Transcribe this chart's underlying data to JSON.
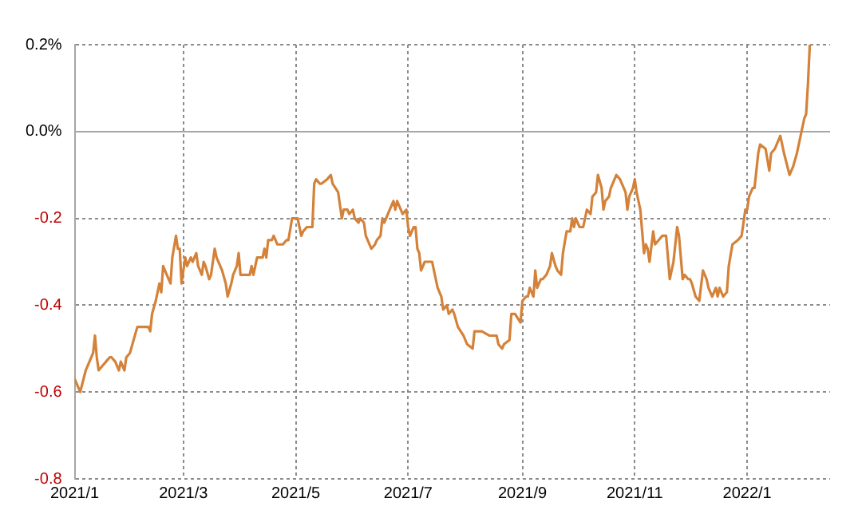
{
  "chart_data": {
    "type": "line",
    "grid": true,
    "legend": false,
    "marker": "none",
    "line_style": "solid",
    "xlim": [
      "2021-01-01",
      "2022-02-15"
    ],
    "xticks": [
      {
        "value": "2021-01-01",
        "label": "2021/1"
      },
      {
        "value": "2021-03-01",
        "label": "2021/3"
      },
      {
        "value": "2021-05-01",
        "label": "2021/5"
      },
      {
        "value": "2021-07-01",
        "label": "2021/7"
      },
      {
        "value": "2021-09-01",
        "label": "2021/9"
      },
      {
        "value": "2021-11-01",
        "label": "2021/11"
      },
      {
        "value": "2022-01-01",
        "label": "2022/1"
      }
    ],
    "ylim": [
      -0.8,
      0.2
    ],
    "yticks": [
      {
        "value": 0.2,
        "label": "0.2%"
      },
      {
        "value": 0,
        "label": "0.0%"
      },
      -0.2,
      -0.4,
      -0.6,
      -0.8
    ],
    "series": [
      {
        "color": "#d4823a",
        "x": [
          "2021-01-01",
          "2021-01-04",
          "2021-01-07",
          "2021-01-08",
          "2021-01-10",
          "2021-01-11",
          "2021-01-12",
          "2021-01-13",
          "2021-01-14",
          "2021-01-16",
          "2021-01-18",
          "2021-01-20",
          "2021-01-21",
          "2021-01-23",
          "2021-01-25",
          "2021-01-26",
          "2021-01-28",
          "2021-01-29",
          "2021-01-31",
          "2021-02-02",
          "2021-02-04",
          "2021-02-07",
          "2021-02-10",
          "2021-02-11",
          "2021-02-12",
          "2021-02-14",
          "2021-02-16",
          "2021-02-17",
          "2021-02-18",
          "2021-02-20",
          "2021-02-22",
          "2021-02-23",
          "2021-02-25",
          "2021-02-26",
          "2021-02-27",
          "2021-02-28",
          "2021-03-02",
          "2021-03-03",
          "2021-03-05",
          "2021-03-06",
          "2021-03-08",
          "2021-03-09",
          "2021-03-11",
          "2021-03-12",
          "2021-03-13",
          "2021-03-15",
          "2021-03-16",
          "2021-03-18",
          "2021-03-19",
          "2021-03-21",
          "2021-03-22",
          "2021-03-24",
          "2021-03-25",
          "2021-03-27",
          "2021-03-28",
          "2021-03-30",
          "2021-03-31",
          "2021-04-01",
          "2021-04-04",
          "2021-04-06",
          "2021-04-07",
          "2021-04-08",
          "2021-04-10",
          "2021-04-11",
          "2021-04-13",
          "2021-04-14",
          "2021-04-15",
          "2021-04-16",
          "2021-04-18",
          "2021-04-19",
          "2021-04-20",
          "2021-04-21",
          "2021-04-24",
          "2021-04-26",
          "2021-04-27",
          "2021-04-29",
          "2021-05-01",
          "2021-05-02",
          "2021-05-04",
          "2021-05-05",
          "2021-05-07",
          "2021-05-08",
          "2021-05-10",
          "2021-05-11",
          "2021-05-12",
          "2021-05-14",
          "2021-05-15",
          "2021-05-18",
          "2021-05-20",
          "2021-05-21",
          "2021-05-24",
          "2021-05-26",
          "2021-05-27",
          "2021-05-29",
          "2021-05-30",
          "2021-06-01",
          "2021-06-02",
          "2021-06-04",
          "2021-06-05",
          "2021-06-07",
          "2021-06-08",
          "2021-06-10",
          "2021-06-11",
          "2021-06-13",
          "2021-06-14",
          "2021-06-16",
          "2021-06-17",
          "2021-06-18",
          "2021-06-20",
          "2021-06-21",
          "2021-06-23",
          "2021-06-24",
          "2021-06-25",
          "2021-06-27",
          "2021-06-28",
          "2021-06-30",
          "2021-07-01",
          "2021-07-02",
          "2021-07-04",
          "2021-07-05",
          "2021-07-06",
          "2021-07-07",
          "2021-07-08",
          "2021-07-10",
          "2021-07-11",
          "2021-07-14",
          "2021-07-16",
          "2021-07-17",
          "2021-07-19",
          "2021-07-20",
          "2021-07-22",
          "2021-07-23",
          "2021-07-25",
          "2021-07-26",
          "2021-07-28",
          "2021-07-31",
          "2021-08-02",
          "2021-08-05",
          "2021-08-06",
          "2021-08-10",
          "2021-08-14",
          "2021-08-18",
          "2021-08-19",
          "2021-08-21",
          "2021-08-22",
          "2021-08-25",
          "2021-08-26",
          "2021-08-28",
          "2021-08-31",
          "2021-09-01",
          "2021-09-03",
          "2021-09-04",
          "2021-09-05",
          "2021-09-07",
          "2021-09-08",
          "2021-09-09",
          "2021-09-11",
          "2021-09-12",
          "2021-09-14",
          "2021-09-16",
          "2021-09-17",
          "2021-09-19",
          "2021-09-20",
          "2021-09-22",
          "2021-09-23",
          "2021-09-25",
          "2021-09-27",
          "2021-09-28",
          "2021-09-29",
          "2021-09-30",
          "2021-10-02",
          "2021-10-04",
          "2021-10-06",
          "2021-10-08",
          "2021-10-09",
          "2021-10-11",
          "2021-10-12",
          "2021-10-14",
          "2021-10-15",
          "2021-10-16",
          "2021-10-18",
          "2021-10-19",
          "2021-10-21",
          "2021-10-22",
          "2021-10-24",
          "2021-10-25",
          "2021-10-27",
          "2021-10-28",
          "2021-10-29",
          "2021-10-31",
          "2021-11-01",
          "2021-11-02",
          "2021-11-04",
          "2021-11-05",
          "2021-11-06",
          "2021-11-07",
          "2021-11-08",
          "2021-11-09",
          "2021-11-11",
          "2021-11-12",
          "2021-11-14",
          "2021-11-16",
          "2021-11-18",
          "2021-11-20",
          "2021-11-22",
          "2021-11-24",
          "2021-11-25",
          "2021-11-27",
          "2021-11-28",
          "2021-11-30",
          "2021-12-01",
          "2021-12-02",
          "2021-12-04",
          "2021-12-06",
          "2021-12-08",
          "2021-12-10",
          "2021-12-11",
          "2021-12-13",
          "2021-12-15",
          "2021-12-16",
          "2021-12-17",
          "2021-12-19",
          "2021-12-21",
          "2021-12-22",
          "2021-12-24",
          "2021-12-27",
          "2021-12-29",
          "2021-12-31",
          "2022-01-01",
          "2022-01-02",
          "2022-01-04",
          "2022-01-05",
          "2022-01-07",
          "2022-01-08",
          "2022-01-11",
          "2022-01-13",
          "2022-01-14",
          "2022-01-16",
          "2022-01-18",
          "2022-01-19",
          "2022-01-21",
          "2022-01-24",
          "2022-01-26",
          "2022-01-28",
          "2022-01-30",
          "2022-02-01",
          "2022-02-02",
          "2022-02-03",
          "2022-02-04"
        ],
        "values": [
          -0.57,
          -0.6,
          -0.55,
          -0.54,
          -0.52,
          -0.51,
          -0.47,
          -0.52,
          -0.55,
          -0.54,
          -0.53,
          -0.52,
          -0.52,
          -0.53,
          -0.55,
          -0.53,
          -0.55,
          -0.52,
          -0.51,
          -0.48,
          -0.45,
          -0.45,
          -0.45,
          -0.46,
          -0.42,
          -0.39,
          -0.35,
          -0.37,
          -0.31,
          -0.33,
          -0.35,
          -0.29,
          -0.24,
          -0.27,
          -0.27,
          -0.35,
          -0.29,
          -0.31,
          -0.29,
          -0.3,
          -0.28,
          -0.31,
          -0.33,
          -0.3,
          -0.31,
          -0.34,
          -0.33,
          -0.27,
          -0.29,
          -0.31,
          -0.32,
          -0.35,
          -0.38,
          -0.35,
          -0.33,
          -0.31,
          -0.28,
          -0.33,
          -0.33,
          -0.33,
          -0.31,
          -0.33,
          -0.29,
          -0.29,
          -0.29,
          -0.27,
          -0.29,
          -0.25,
          -0.25,
          -0.24,
          -0.25,
          -0.26,
          -0.26,
          -0.25,
          -0.25,
          -0.2,
          -0.2,
          -0.2,
          -0.24,
          -0.23,
          -0.22,
          -0.22,
          -0.22,
          -0.12,
          -0.11,
          -0.12,
          -0.12,
          -0.11,
          -0.1,
          -0.12,
          -0.14,
          -0.2,
          -0.18,
          -0.18,
          -0.19,
          -0.18,
          -0.2,
          -0.21,
          -0.2,
          -0.21,
          -0.24,
          -0.26,
          -0.27,
          -0.26,
          -0.25,
          -0.24,
          -0.2,
          -0.21,
          -0.19,
          -0.18,
          -0.16,
          -0.18,
          -0.16,
          -0.18,
          -0.19,
          -0.18,
          -0.22,
          -0.24,
          -0.22,
          -0.22,
          -0.27,
          -0.28,
          -0.32,
          -0.3,
          -0.3,
          -0.3,
          -0.34,
          -0.36,
          -0.38,
          -0.41,
          -0.4,
          -0.42,
          -0.41,
          -0.42,
          -0.45,
          -0.47,
          -0.49,
          -0.5,
          -0.46,
          -0.46,
          -0.47,
          -0.47,
          -0.49,
          -0.5,
          -0.49,
          -0.48,
          -0.42,
          -0.42,
          -0.44,
          -0.39,
          -0.38,
          -0.38,
          -0.36,
          -0.38,
          -0.32,
          -0.36,
          -0.34,
          -0.34,
          -0.33,
          -0.31,
          -0.28,
          -0.31,
          -0.32,
          -0.33,
          -0.28,
          -0.23,
          -0.23,
          -0.2,
          -0.22,
          -0.2,
          -0.22,
          -0.22,
          -0.18,
          -0.19,
          -0.15,
          -0.14,
          -0.1,
          -0.13,
          -0.18,
          -0.16,
          -0.15,
          -0.13,
          -0.11,
          -0.1,
          -0.11,
          -0.12,
          -0.14,
          -0.18,
          -0.15,
          -0.13,
          -0.11,
          -0.14,
          -0.18,
          -0.23,
          -0.28,
          -0.26,
          -0.27,
          -0.3,
          -0.23,
          -0.26,
          -0.25,
          -0.24,
          -0.24,
          -0.34,
          -0.3,
          -0.22,
          -0.24,
          -0.34,
          -0.33,
          -0.34,
          -0.34,
          -0.35,
          -0.38,
          -0.39,
          -0.32,
          -0.34,
          -0.36,
          -0.38,
          -0.36,
          -0.38,
          -0.36,
          -0.38,
          -0.37,
          -0.31,
          -0.26,
          -0.25,
          -0.24,
          -0.18,
          -0.18,
          -0.15,
          -0.13,
          -0.13,
          -0.05,
          -0.03,
          -0.04,
          -0.09,
          -0.05,
          -0.04,
          -0.02,
          -0.01,
          -0.05,
          -0.1,
          -0.08,
          -0.05,
          -0.01,
          0.03,
          0.04,
          0.11,
          0.2
        ]
      }
    ]
  }
}
